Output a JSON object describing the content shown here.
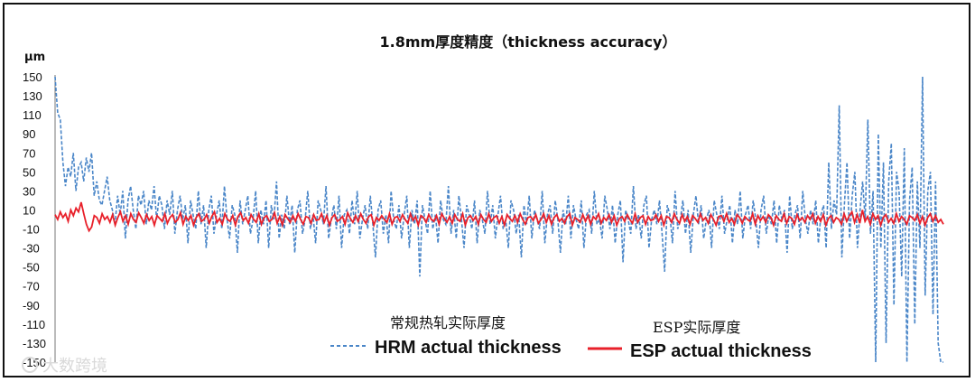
{
  "chart_data": {
    "type": "line",
    "title": "1.8mm厚度精度（thickness accuracy）",
    "ylabel": "μm",
    "ylim": [
      -150,
      150
    ],
    "yticks": [
      150,
      130,
      110,
      90,
      70,
      50,
      30,
      10,
      -10,
      -30,
      -50,
      -70,
      -90,
      -110,
      -130,
      -150
    ],
    "x_points": 330,
    "legend": "bottom",
    "series": [
      {
        "name": "HRM actual thickness",
        "name_cn": "常规热轧实际厚度",
        "color": "#4a86c8",
        "style": "dashed",
        "values": [
          150,
          112,
          105,
          60,
          35,
          55,
          45,
          70,
          30,
          55,
          60,
          40,
          65,
          50,
          70,
          25,
          40,
          20,
          15,
          30,
          45,
          20,
          10,
          -5,
          25,
          5,
          30,
          -20,
          20,
          35,
          10,
          -10,
          25,
          15,
          30,
          -5,
          20,
          10,
          35,
          0,
          25,
          15,
          -10,
          20,
          5,
          30,
          -15,
          10,
          25,
          0,
          15,
          -25,
          20,
          5,
          -10,
          30,
          -5,
          15,
          -30,
          10,
          25,
          -15,
          5,
          20,
          -10,
          35,
          0,
          -20,
          15,
          5,
          -35,
          20,
          -5,
          10,
          25,
          -15,
          0,
          30,
          -25,
          10,
          -5,
          20,
          -30,
          15,
          0,
          40,
          -20,
          5,
          -10,
          25,
          -5,
          15,
          -35,
          10,
          20,
          -15,
          0,
          30,
          -10,
          5,
          -25,
          20,
          10,
          -5,
          35,
          -20,
          0,
          15,
          -10,
          25,
          -30,
          5,
          10,
          -15,
          20,
          -5,
          30,
          -20,
          0,
          15,
          -10,
          25,
          -5,
          -40,
          10,
          20,
          -15,
          5,
          -25,
          30,
          0,
          -10,
          15,
          -20,
          5,
          25,
          -30,
          10,
          -5,
          20,
          -60,
          15,
          0,
          -15,
          30,
          -10,
          5,
          -25,
          20,
          0,
          -5,
          35,
          -15,
          10,
          -20,
          25,
          0,
          -30,
          15,
          5,
          -10,
          20,
          -25,
          10,
          0,
          -15,
          30,
          -5,
          15,
          -20,
          5,
          25,
          -10,
          0,
          -30,
          20,
          10,
          -15,
          5,
          -40,
          15,
          -5,
          25,
          -20,
          10,
          0,
          -10,
          30,
          -25,
          5,
          15,
          -15,
          20,
          0,
          -35,
          10,
          -5,
          25,
          -20,
          15,
          0,
          -10,
          20,
          -30,
          5,
          10,
          -15,
          30,
          -5,
          0,
          -20,
          25,
          10,
          -10,
          15,
          -25,
          5,
          20,
          -45,
          10,
          0,
          -15,
          35,
          -10,
          5,
          -20,
          15,
          25,
          -30,
          0,
          10,
          -5,
          20,
          -15,
          -55,
          15,
          5,
          -25,
          30,
          -10,
          0,
          20,
          -15,
          10,
          -35,
          5,
          25,
          -5,
          15,
          -20,
          0,
          10,
          -30,
          20,
          5,
          -10,
          25,
          -15,
          0,
          15,
          -25,
          10,
          -5,
          30,
          -20,
          5,
          15,
          -10,
          20,
          0,
          -30,
          10,
          25,
          -15,
          5,
          -5,
          20,
          -25,
          15,
          0,
          10,
          -35,
          25,
          -10,
          5,
          15,
          -20,
          30,
          0,
          -15,
          10,
          -5,
          20,
          -25,
          5,
          15,
          -30,
          60,
          -10,
          20,
          5,
          120,
          -40,
          15,
          60,
          -20,
          25,
          50,
          -30,
          10,
          40,
          0,
          105,
          -15,
          30,
          -150,
          90,
          -30,
          60,
          -130,
          40,
          80,
          -90,
          50,
          30,
          -60,
          75,
          -150,
          20,
          55,
          -110,
          40,
          -30,
          150,
          -80,
          30,
          50,
          -100,
          40,
          -130,
          -150,
          -150
        ],
        "note": ""
      },
      {
        "name": "ESP actual thickness",
        "name_cn": "ESP实际厚度",
        "color": "#e8202a",
        "style": "solid",
        "values": [
          5,
          0,
          8,
          2,
          6,
          -2,
          10,
          4,
          12,
          8,
          18,
          6,
          -5,
          -12,
          -8,
          4,
          2,
          -4,
          6,
          0,
          3,
          -3,
          5,
          -6,
          2,
          8,
          -2,
          4,
          -5,
          6,
          0,
          -3,
          7,
          2,
          -4,
          5,
          -1,
          3,
          -6,
          4,
          1,
          -2,
          6,
          -4,
          2,
          5,
          -3,
          0,
          7,
          -5,
          3,
          -1,
          4,
          -6,
          2,
          6,
          -2,
          0,
          5,
          -4,
          3,
          8,
          -3,
          1,
          -5,
          6,
          0,
          -2,
          4,
          -6,
          3,
          7,
          -1,
          2,
          -4,
          5,
          0,
          -3,
          6,
          -5,
          2,
          4,
          -2,
          0,
          7,
          -4,
          3,
          -6,
          5,
          1,
          -3,
          4,
          -2,
          6,
          0,
          -5,
          3,
          2,
          -4,
          5,
          -1,
          0,
          6,
          -3,
          4,
          -6,
          2,
          5,
          -2,
          0,
          3,
          -5,
          7,
          1,
          -3,
          4,
          -2,
          6,
          0,
          -4,
          3,
          5,
          -6,
          2,
          -1,
          4,
          0,
          -3,
          6,
          -5,
          2,
          3,
          -2,
          5,
          0,
          -4,
          6,
          -1,
          3,
          -6,
          4,
          2,
          -3,
          5,
          0,
          -2,
          4,
          -5,
          6,
          1,
          -3,
          3,
          -4,
          5,
          0,
          -2,
          6,
          -6,
          2,
          4,
          -1,
          3,
          -5,
          5,
          0,
          -3,
          6,
          -2,
          2,
          4,
          -4,
          3,
          -6,
          5,
          1,
          -2,
          4,
          -3,
          6,
          0,
          -5,
          2,
          3,
          -1,
          5,
          -4,
          0,
          6,
          -3,
          4,
          -5,
          2,
          5,
          -2,
          1,
          -4,
          3,
          6,
          -6,
          2,
          0,
          -3,
          5,
          -2,
          4,
          -5,
          3,
          0,
          6,
          -4,
          2,
          -1,
          5,
          -3,
          4,
          -6,
          1,
          3,
          -2,
          5,
          0,
          -4,
          6,
          -3,
          2,
          4,
          -5,
          3,
          -1,
          0,
          5,
          -2,
          4,
          -6,
          3,
          2,
          -3,
          6,
          0,
          -4,
          5,
          -2,
          3,
          -5,
          4,
          1,
          -3,
          6,
          -1,
          2,
          -4,
          5,
          0,
          -6,
          3,
          4,
          -2,
          6,
          -3,
          1,
          -5,
          5,
          2,
          -4,
          3,
          0,
          -2,
          6,
          -5,
          4,
          -1,
          3,
          -3,
          5,
          2,
          -6,
          4,
          0,
          -2,
          6,
          -4,
          3,
          1,
          -5,
          5,
          -1,
          2,
          -3,
          4,
          0,
          6,
          -4,
          3,
          -2,
          5,
          -6,
          1,
          4,
          -3,
          2,
          0,
          -5,
          6,
          -2,
          4,
          8,
          -3,
          5,
          -4,
          10,
          -2,
          3,
          -5,
          6,
          0,
          4,
          -6,
          2,
          5,
          -3,
          1,
          -4,
          6,
          -2,
          3,
          0,
          -5,
          4,
          2,
          -1,
          5,
          -4,
          3,
          -6,
          2,
          6,
          -2,
          4,
          -3,
          0,
          -5
        ]
      }
    ]
  },
  "watermark": {
    "text": "大数跨境",
    "icon": "camera-icon"
  }
}
